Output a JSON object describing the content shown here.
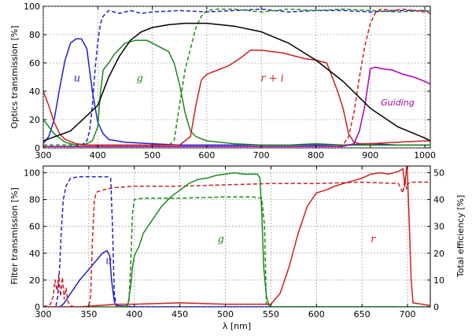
{
  "chart_data": [
    {
      "type": "line",
      "xlabel": "",
      "ylabel": "Optics transmission  [%]",
      "xlim": [
        300,
        1010
      ],
      "ylim": [
        0,
        100
      ],
      "grid": true,
      "xticks": [
        "300",
        "400",
        "500",
        "600",
        "700",
        "800",
        "900",
        "1000"
      ],
      "yticks": [
        "0",
        "20",
        "40",
        "60",
        "80",
        "100"
      ],
      "annotations": [
        {
          "text": "u",
          "color": "#1f1fcc",
          "x": 362,
          "y": 47
        },
        {
          "text": "g",
          "color": "#1a8a1a",
          "x": 477,
          "y": 47
        },
        {
          "text": "r + i",
          "color": "#cc1f1f",
          "x": 720,
          "y": 47
        },
        {
          "text": "Guiding",
          "color": "#aa00aa",
          "x": 950,
          "y": 30
        }
      ],
      "series": [
        {
          "color": "#1f1fcc",
          "dash": false,
          "x": [
            300,
            310,
            320,
            330,
            340,
            350,
            360,
            370,
            380,
            390,
            400,
            410,
            420,
            450,
            500,
            550,
            600,
            650,
            700,
            750,
            800,
            850,
            900,
            950,
            1000,
            1010
          ],
          "y": [
            3,
            8,
            20,
            42,
            62,
            74,
            77,
            77,
            70,
            40,
            18,
            10,
            6,
            4,
            3,
            2,
            2,
            2,
            2,
            2,
            2,
            2,
            3,
            2,
            2,
            2
          ]
        },
        {
          "color": "#1f1fcc",
          "dash": true,
          "x": [
            300,
            320,
            340,
            360,
            370,
            380,
            385,
            390,
            395,
            400,
            405,
            410,
            420,
            440,
            460,
            480,
            500,
            550,
            600,
            650,
            700,
            750,
            800,
            850,
            900,
            950,
            1000,
            1010
          ],
          "y": [
            1,
            1,
            1,
            1,
            2,
            5,
            12,
            30,
            55,
            75,
            88,
            93,
            97,
            95,
            97,
            95,
            96,
            97,
            96,
            97,
            98,
            96,
            97,
            97,
            96,
            97,
            97,
            96
          ]
        },
        {
          "color": "#1a8a1a",
          "dash": false,
          "x": [
            300,
            320,
            340,
            360,
            380,
            390,
            400,
            405,
            410,
            420,
            430,
            440,
            450,
            470,
            490,
            510,
            530,
            540,
            550,
            560,
            570,
            580,
            600,
            650,
            700,
            750,
            800,
            850,
            900,
            950,
            1000,
            1010
          ],
          "y": [
            20,
            10,
            4,
            2,
            3,
            5,
            15,
            40,
            55,
            60,
            66,
            70,
            74,
            76,
            76,
            72,
            68,
            60,
            45,
            25,
            12,
            8,
            5,
            3,
            2,
            2,
            3,
            2,
            2,
            2,
            2,
            2
          ]
        },
        {
          "color": "#1a8a1a",
          "dash": true,
          "x": [
            300,
            400,
            450,
            500,
            530,
            540,
            550,
            560,
            570,
            580,
            590,
            600,
            620,
            650,
            700,
            750,
            800,
            850,
            900,
            950,
            1000,
            1010
          ],
          "y": [
            2,
            2,
            2,
            2,
            2,
            5,
            30,
            55,
            70,
            85,
            93,
            97,
            98,
            98,
            96,
            98,
            97,
            98,
            97,
            96,
            97,
            97
          ]
        },
        {
          "color": "#cc1f1f",
          "dash": false,
          "x": [
            300,
            310,
            320,
            330,
            340,
            360,
            380,
            400,
            450,
            500,
            550,
            570,
            580,
            590,
            600,
            620,
            640,
            660,
            680,
            700,
            720,
            740,
            760,
            780,
            800,
            820,
            840,
            850,
            860,
            870,
            880,
            890,
            900,
            950,
            1000,
            1010
          ],
          "y": [
            40,
            30,
            18,
            10,
            6,
            3,
            2,
            2,
            2,
            2,
            2,
            8,
            30,
            48,
            52,
            55,
            58,
            63,
            69,
            69,
            68,
            67,
            65,
            63,
            62,
            60,
            40,
            28,
            10,
            4,
            3,
            3,
            3,
            4,
            5,
            5
          ]
        },
        {
          "color": "#cc1f1f",
          "dash": true,
          "x": [
            300,
            400,
            500,
            600,
            700,
            800,
            840,
            850,
            860,
            870,
            880,
            890,
            900,
            910,
            920,
            940,
            960,
            980,
            1000,
            1010
          ],
          "y": [
            1,
            1,
            1,
            1,
            1,
            1,
            1,
            2,
            8,
            25,
            50,
            72,
            88,
            96,
            98,
            97,
            98,
            97,
            96,
            95
          ]
        },
        {
          "color": "#aa00aa",
          "dash": false,
          "x": [
            300,
            400,
            500,
            600,
            700,
            800,
            850,
            870,
            880,
            890,
            900,
            910,
            920,
            940,
            960,
            980,
            1000,
            1010
          ],
          "y": [
            1,
            1,
            1,
            1,
            1,
            1,
            1,
            3,
            12,
            30,
            56,
            57,
            56,
            55,
            52,
            50,
            47,
            45
          ]
        },
        {
          "color": "#000000",
          "dash": false,
          "x": [
            300,
            350,
            400,
            420,
            440,
            460,
            480,
            500,
            530,
            560,
            600,
            650,
            700,
            750,
            800,
            850,
            900,
            950,
            1000,
            1010
          ],
          "y": [
            5,
            12,
            30,
            50,
            65,
            76,
            82,
            85,
            87,
            88,
            88,
            86,
            82,
            74,
            62,
            47,
            28,
            15,
            7,
            5
          ]
        }
      ]
    },
    {
      "type": "line",
      "xlabel": "λ [nm]",
      "ylabel": "Filter transmission  [%]",
      "y2label": "Total efficiency  [%]",
      "xlim": [
        300,
        725
      ],
      "ylim": [
        0,
        105
      ],
      "y2lim": [
        0,
        52.5
      ],
      "grid": true,
      "xticks": [
        "300",
        "350",
        "400",
        "450",
        "500",
        "550",
        "600",
        "650",
        "700"
      ],
      "yticks": [
        "0",
        "20",
        "40",
        "60",
        "80",
        "100"
      ],
      "y2ticks": [
        "0",
        "10",
        "20",
        "30",
        "40",
        "50"
      ],
      "annotations": [
        {
          "text": "u",
          "color": "#1f1fcc",
          "x": 372,
          "y": 32
        },
        {
          "text": "g",
          "color": "#1a8a1a",
          "x": 495,
          "y": 48
        },
        {
          "text": "r",
          "color": "#cc1f1f",
          "x": 662,
          "y": 48
        }
      ],
      "series": [
        {
          "color": "#1f1fcc",
          "dash": true,
          "x": [
            300,
            310,
            314,
            316,
            318,
            320,
            322,
            325,
            330,
            340,
            350,
            360,
            370,
            374,
            376,
            378,
            380,
            400,
            450,
            500,
            550,
            600,
            650,
            700,
            725
          ],
          "y": [
            0,
            0,
            1,
            8,
            30,
            60,
            80,
            90,
            96,
            97,
            97,
            97,
            97,
            96,
            60,
            10,
            1,
            0,
            0,
            0,
            0,
            0,
            0,
            0,
            0
          ]
        },
        {
          "color": "#1f1fcc",
          "dash": false,
          "x": [
            300,
            318,
            322,
            330,
            340,
            350,
            360,
            365,
            370,
            373,
            375,
            378,
            380,
            400,
            450,
            500,
            550,
            600,
            650,
            700,
            725
          ],
          "y": [
            0,
            0,
            2,
            10,
            20,
            28,
            36,
            40,
            42,
            38,
            20,
            4,
            1,
            0,
            0,
            0,
            0,
            0,
            0,
            0,
            0
          ]
        },
        {
          "color": "#cc1f1f",
          "dash": true,
          "x": [
            300,
            308,
            311,
            313,
            315,
            317,
            319,
            321,
            323,
            325,
            327,
            330,
            335,
            345,
            350,
            352,
            354,
            356,
            358,
            360,
            365,
            370,
            380,
            400,
            450,
            500,
            550,
            600,
            650,
            690,
            695,
            697,
            699,
            700,
            705,
            725
          ],
          "y": [
            0,
            2,
            8,
            20,
            12,
            24,
            8,
            22,
            6,
            14,
            4,
            1,
            0,
            0,
            1,
            8,
            50,
            78,
            85,
            86,
            87,
            88,
            89,
            90,
            90,
            91,
            92,
            92,
            93,
            92,
            85,
            95,
            88,
            92,
            93,
            93
          ]
        },
        {
          "color": "#1a8a1a",
          "dash": true,
          "x": [
            300,
            390,
            394,
            396,
            398,
            400,
            410,
            450,
            500,
            530,
            540,
            543,
            545,
            550,
            600,
            725
          ],
          "y": [
            0,
            0,
            4,
            30,
            70,
            80,
            81,
            81,
            82,
            82,
            81,
            60,
            2,
            0,
            0,
            0
          ]
        },
        {
          "color": "#1a8a1a",
          "dash": false,
          "x": [
            300,
            390,
            393,
            396,
            398,
            400,
            405,
            410,
            420,
            430,
            440,
            450,
            460,
            470,
            480,
            490,
            500,
            510,
            520,
            530,
            535,
            538,
            540,
            542,
            545,
            548,
            550,
            600,
            725
          ],
          "y": [
            0,
            0,
            2,
            15,
            30,
            38,
            45,
            55,
            65,
            75,
            82,
            87,
            92,
            95,
            96,
            98,
            99,
            100,
            99,
            99,
            99,
            96,
            70,
            30,
            8,
            1,
            0,
            0,
            0
          ]
        },
        {
          "color": "#cc1f1f",
          "dash": false,
          "x": [
            300,
            320,
            340,
            360,
            380,
            400,
            450,
            500,
            550,
            560,
            570,
            580,
            590,
            600,
            610,
            620,
            630,
            640,
            650,
            660,
            670,
            680,
            690,
            695,
            697,
            699,
            700,
            702,
            704,
            706,
            725
          ],
          "y": [
            0,
            0,
            0,
            1,
            2,
            2,
            3,
            2,
            2,
            10,
            30,
            55,
            75,
            85,
            87,
            90,
            92,
            94,
            96,
            99,
            100,
            99,
            101,
            103,
            90,
            105,
            98,
            60,
            20,
            3,
            1
          ]
        }
      ]
    }
  ]
}
